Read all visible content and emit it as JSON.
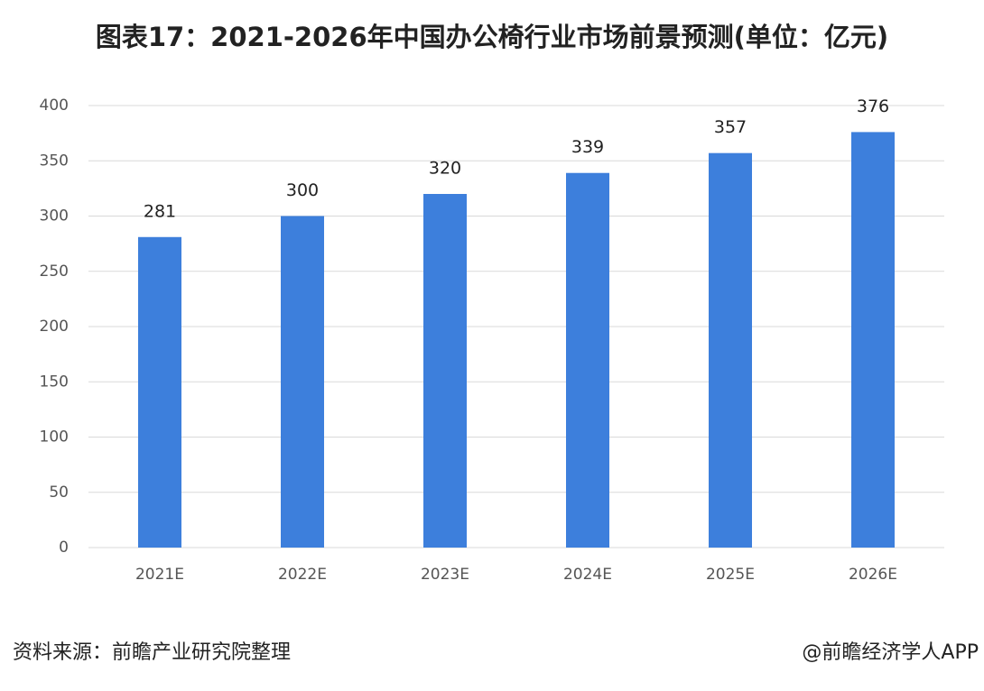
{
  "chart_data": {
    "type": "bar",
    "title": "图表17：2021-2026年中国办公椅行业市场前景预测(单位：亿元)",
    "categories": [
      "2021E",
      "2022E",
      "2023E",
      "2024E",
      "2025E",
      "2026E"
    ],
    "values": [
      281,
      300,
      320,
      339,
      357,
      376
    ],
    "color": "#3d7fdc",
    "ylim": [
      0,
      400
    ],
    "yticks": [
      0,
      50,
      100,
      150,
      200,
      250,
      300,
      350,
      400
    ],
    "grid": true,
    "source": "资料来源：前瞻产业研究院整理",
    "credit": "@前瞻经济学人APP"
  }
}
